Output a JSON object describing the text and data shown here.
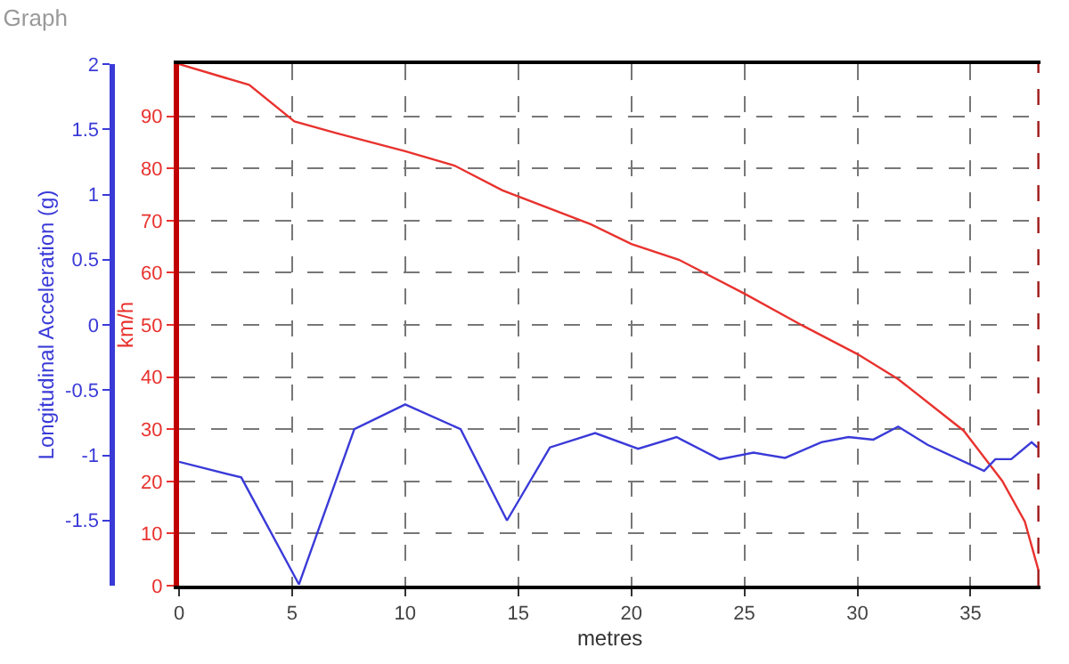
{
  "chart_data": {
    "type": "line",
    "title": "Graph",
    "xlabel": "metres",
    "ylabel": "km/h",
    "y2label": "Longitudinal Acceleration (g)",
    "xlim": [
      0,
      38.1
    ],
    "xticks": [
      0,
      5,
      10,
      15,
      20,
      25,
      30,
      35
    ],
    "ylim": [
      0,
      100
    ],
    "yticks": [
      0,
      10,
      20,
      30,
      40,
      50,
      60,
      70,
      80,
      90
    ],
    "y2lim": [
      -2,
      2
    ],
    "y2ticks": [
      -1.5,
      -1,
      -0.5,
      0,
      0.5,
      1,
      1.5,
      2
    ],
    "grid": true,
    "line_style": "solid",
    "ref_lines": [
      {
        "axis": "x",
        "value": 38,
        "color": "#a01818",
        "line_style": "dashed"
      }
    ],
    "series": [
      {
        "color": "#e8322e",
        "x": [
          0,
          3.1,
          5.1,
          7.0,
          10,
          12.2,
          14.3,
          18.2,
          20.0,
          22.1,
          25.0,
          27.6,
          30.0,
          31.8,
          34.7,
          36.4,
          37.4,
          38.0
        ],
        "values": [
          100,
          96,
          89,
          86.7,
          83.3,
          80.5,
          75.8,
          69.3,
          65.5,
          62.5,
          56,
          49.8,
          44.4,
          39.6,
          29.7,
          20.1,
          12.3,
          3
        ]
      },
      {
        "color": "#3a3ad8",
        "axis": "y2",
        "x": [
          0,
          2.75,
          5.3,
          7.75,
          10,
          12.45,
          14.5,
          16.4,
          18.4,
          20.3,
          22.0,
          23.9,
          25.4,
          26.8,
          28.4,
          29.6,
          30.7,
          31.8,
          33.1,
          35.6,
          36.1,
          36.8,
          37.7,
          37.96
        ],
        "values": [
          -1.05,
          -1.17,
          -1.99,
          -0.8,
          -0.61,
          -0.8,
          -1.5,
          -0.94,
          -0.83,
          -0.95,
          -0.86,
          -1.03,
          -0.98,
          -1.02,
          -0.9,
          -0.86,
          -0.88,
          -0.78,
          -0.92,
          -1.12,
          -1.03,
          -1.03,
          -0.9,
          -0.94
        ]
      }
    ]
  }
}
